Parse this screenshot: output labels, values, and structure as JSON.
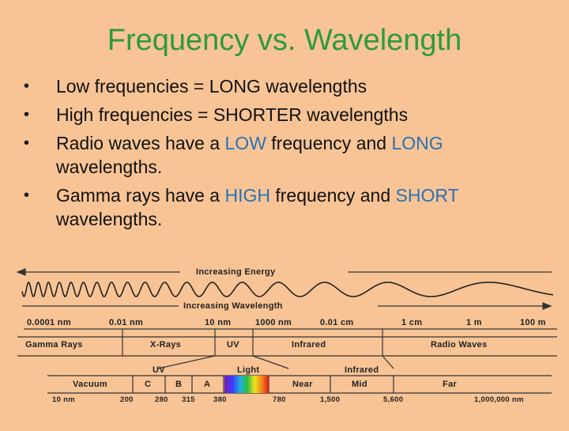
{
  "title": "Frequency vs. Wavelength",
  "bullets": [
    {
      "parts": [
        {
          "t": "Low frequencies = LONG wavelengths",
          "hl": false
        }
      ]
    },
    {
      "parts": [
        {
          "t": "High frequencies = SHORTER wavelengths",
          "hl": false
        }
      ]
    },
    {
      "parts": [
        {
          "t": "Radio waves have a ",
          "hl": false
        },
        {
          "t": "LOW",
          "hl": true
        },
        {
          "t": " frequency and ",
          "hl": false
        },
        {
          "t": "LONG",
          "hl": true
        },
        {
          "t": " wavelengths.",
          "hl": false
        }
      ]
    },
    {
      "parts": [
        {
          "t": "Gamma rays have a ",
          "hl": false
        },
        {
          "t": "HIGH",
          "hl": true
        },
        {
          "t": " frequency and ",
          "hl": false
        },
        {
          "t": "SHORT",
          "hl": true
        },
        {
          "t": " wavelengths.",
          "hl": false
        }
      ]
    }
  ],
  "bullet_symbol": "•",
  "colors": {
    "background": "#f8c495",
    "title": "#2e9a3c",
    "highlight": "#2872b5"
  },
  "spectrum": {
    "energy_label": "Increasing Energy",
    "wavelength_label": "Increasing Wavelength",
    "scale": [
      "0.0001 nm",
      "0.01 nm",
      "10 nm",
      "1000 nm",
      "0.01 cm",
      "1 cm",
      "1 m",
      "100 m"
    ],
    "bands": [
      "Gamma Rays",
      "X-Rays",
      "UV",
      "Infrared",
      "Radio Waves"
    ],
    "sub_headers": [
      "UV",
      "Light",
      "Infrared"
    ],
    "sub_bands": [
      "Vacuum",
      "C",
      "B",
      "A",
      "Near",
      "Mid",
      "Far"
    ],
    "sub_scale": [
      "10 nm",
      "200",
      "280",
      "315",
      "380",
      "780",
      "1,500",
      "5,600",
      "1,000,000 nm"
    ]
  }
}
